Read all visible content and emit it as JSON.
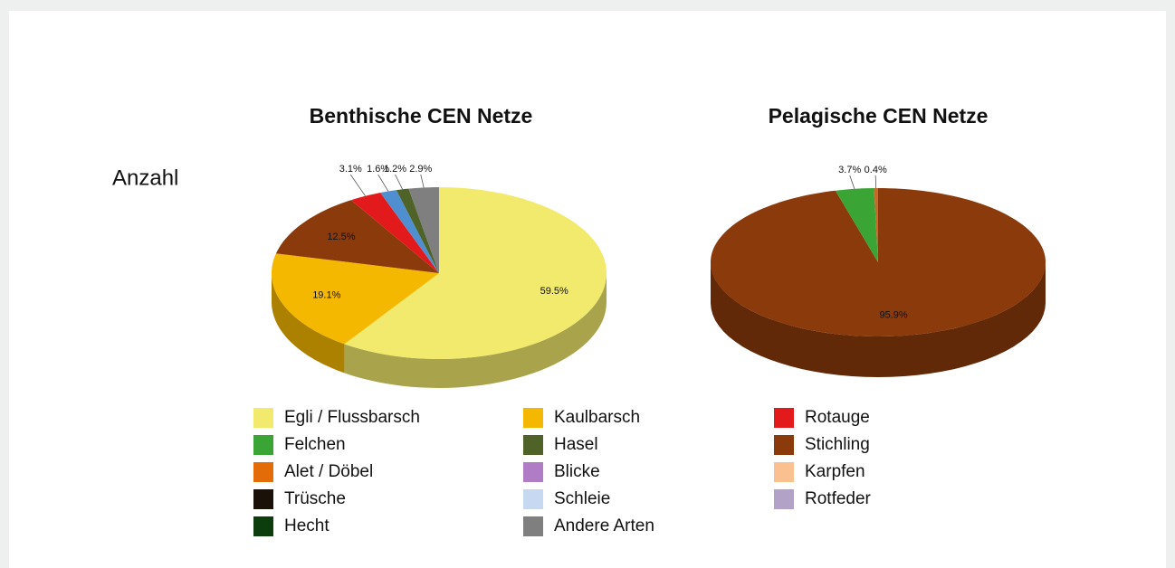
{
  "label": "Anzahl",
  "chart_data": [
    {
      "type": "pie3d",
      "title": "Benthische CEN Netze",
      "categories": [
        "Egli / Flussbarsch",
        "Kaulbarsch",
        "Stichling",
        "Rotauge",
        "Schleie",
        "Hasel",
        "Andere Arten"
      ],
      "values": [
        59.5,
        19.1,
        12.5,
        3.1,
        1.6,
        1.2,
        2.9
      ],
      "value_labels": [
        "59.5%",
        "19.1%",
        "12.5%",
        "3.1%",
        "1.6%",
        "1.2%",
        "2.9%"
      ],
      "colors": [
        "#f2ea6d",
        "#f5b800",
        "#8b3a0b",
        "#e31a1c",
        "#4f8fd0",
        "#4f6228",
        "#7f7f7f"
      ]
    },
    {
      "type": "pie3d",
      "title": "Pelagische CEN Netze",
      "categories": [
        "Stichling",
        "Felchen",
        null
      ],
      "values": [
        95.9,
        3.7,
        0.4
      ],
      "value_labels": [
        "95.9%",
        "3.7%",
        "0.4%"
      ],
      "colors": [
        "#8b3a0b",
        "#3aa535",
        "#c56a2a"
      ]
    }
  ],
  "legend": [
    {
      "name": "Egli / Flussbarsch",
      "color": "#f2ea6d"
    },
    {
      "name": "Felchen",
      "color": "#3aa535"
    },
    {
      "name": "Alet / Döbel",
      "color": "#e36c09"
    },
    {
      "name": "Trüsche",
      "color": "#1a1209"
    },
    {
      "name": "Hecht",
      "color": "#0c3d0c"
    },
    {
      "name": "Kaulbarsch",
      "color": "#f5b800"
    },
    {
      "name": "Hasel",
      "color": "#4f6228"
    },
    {
      "name": "Blicke",
      "color": "#b07cc6"
    },
    {
      "name": "Schleie",
      "color": "#c6d9f1"
    },
    {
      "name": "Andere Arten",
      "color": "#7f7f7f"
    },
    {
      "name": "Rotauge",
      "color": "#e31a1c"
    },
    {
      "name": "Stichling",
      "color": "#8b3a0b"
    },
    {
      "name": "Karpfen",
      "color": "#fac090"
    },
    {
      "name": "Rotfeder",
      "color": "#b3a2c7"
    }
  ]
}
